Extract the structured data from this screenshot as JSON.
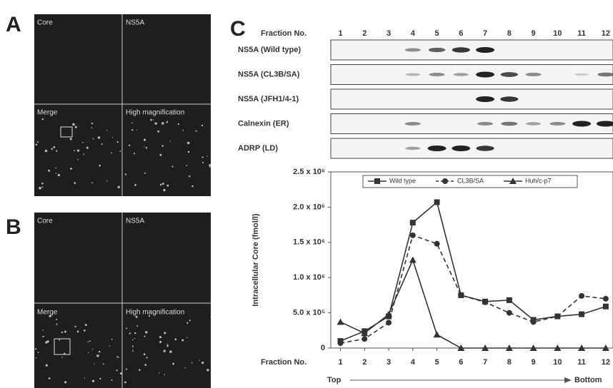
{
  "panels": {
    "a": "A",
    "b": "B",
    "c": "C"
  },
  "micrographs": {
    "core": "Core",
    "ns5a": "NS5A",
    "merge": "Merge",
    "high": "High magnification"
  },
  "blot": {
    "header": "Fraction No.",
    "rows": [
      "NS5A (Wild type)",
      "NS5A (CL3B/SA)",
      "NS5A (JFH1/4-1)",
      "Calnexin (ER)",
      "ADRP (LD)"
    ]
  },
  "chart_data": {
    "type": "line",
    "y_label": "Intracellular Core (fmol/l)",
    "x_label": "Fraction No.",
    "x_start_label": "Top",
    "x_end_label": "Bottom",
    "x": [
      1,
      2,
      3,
      4,
      5,
      6,
      7,
      8,
      9,
      10,
      11,
      12
    ],
    "xlim": [
      0.6,
      12.3
    ],
    "xticks": [
      1,
      2,
      3,
      4,
      5,
      6,
      7,
      8,
      9,
      10,
      11,
      12
    ],
    "ylim": [
      0,
      2500000
    ],
    "yticks": [
      0,
      {
        "value": 500000,
        "label": "5.0 x 10⁵"
      },
      {
        "value": 1000000,
        "label": "1.0 x 10⁶"
      },
      {
        "value": 1500000,
        "label": "1.5 x 10⁶"
      },
      {
        "value": 2000000,
        "label": "2.0 x 10⁶"
      },
      {
        "value": 2500000,
        "label": "2.5 x 10⁶"
      }
    ],
    "series": [
      {
        "name": "Wild type",
        "color": "#333333",
        "marker": "square",
        "dashed": false,
        "values": [
          100000,
          240000,
          450000,
          1780000,
          2070000,
          750000,
          660000,
          680000,
          400000,
          450000,
          480000,
          590000
        ]
      },
      {
        "name": "CL3B/SA",
        "color": "#333333",
        "marker": "circle",
        "dashed": true,
        "values": [
          70000,
          130000,
          360000,
          1600000,
          1480000,
          750000,
          650000,
          500000,
          370000,
          450000,
          740000,
          700000
        ]
      },
      {
        "name": "Huh/c-p7",
        "color": "#333333",
        "marker": "triangle",
        "dashed": false,
        "values": [
          370000,
          210000,
          480000,
          1250000,
          190000,
          0,
          0,
          0,
          0,
          0,
          0,
          0
        ]
      }
    ]
  }
}
